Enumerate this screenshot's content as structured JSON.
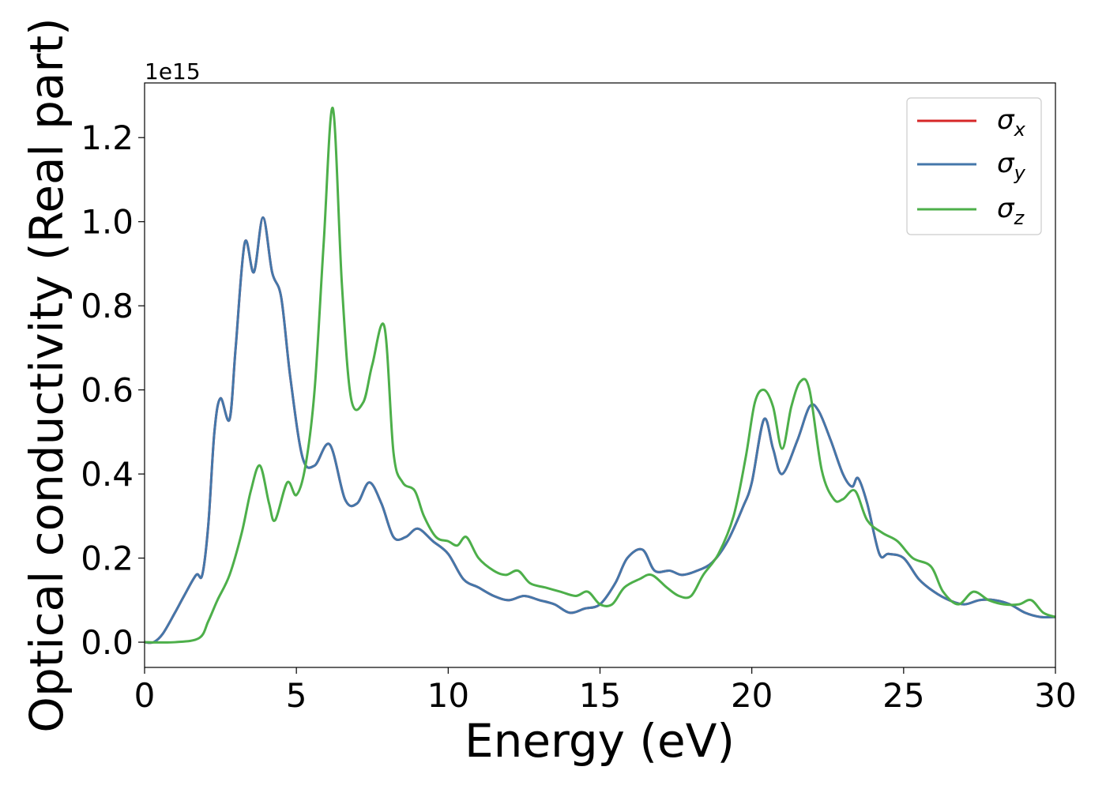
{
  "chart_data": {
    "type": "line",
    "xlabel": "Energy (eV)",
    "ylabel": "Optical conductivity (Real part)",
    "offset_text": "1e15",
    "xlim": [
      0,
      30
    ],
    "ylim": [
      -0.06,
      1.33
    ],
    "x_ticks": [
      0,
      5,
      10,
      15,
      20,
      25,
      30
    ],
    "x_tick_labels": [
      "0",
      "5",
      "10",
      "15",
      "20",
      "25",
      "30"
    ],
    "y_ticks": [
      0.0,
      0.2,
      0.4,
      0.6,
      0.8,
      1.0,
      1.2
    ],
    "y_tick_labels": [
      "0.0",
      "0.2",
      "0.4",
      "0.6",
      "0.8",
      "1.0",
      "1.2"
    ],
    "grid": false,
    "legend_position": "top-right",
    "series": [
      {
        "name": "σx",
        "legend_base": "σ",
        "legend_sub": "x",
        "color": "#d62728",
        "x": [
          0,
          0.3,
          0.6,
          1.0,
          1.3,
          1.7,
          1.9,
          2.1,
          2.3,
          2.5,
          2.8,
          3.0,
          3.3,
          3.6,
          3.9,
          4.2,
          4.5,
          4.8,
          5.2,
          5.6,
          6.1,
          6.6,
          7.0,
          7.4,
          7.8,
          8.2,
          8.6,
          9.0,
          9.5,
          10.0,
          10.5,
          11.0,
          11.5,
          12.0,
          12.5,
          13.0,
          13.5,
          14.0,
          14.5,
          15.0,
          15.5,
          15.9,
          16.4,
          16.8,
          17.3,
          17.7,
          18.2,
          18.7,
          19.2,
          19.7,
          20.0,
          20.4,
          20.7,
          21.0,
          21.5,
          21.9,
          22.2,
          22.6,
          23.0,
          23.3,
          23.5,
          23.8,
          24.2,
          24.5,
          25.0,
          25.5,
          26.0,
          26.5,
          27.0,
          27.5,
          28.0,
          28.5,
          29.0,
          29.5,
          30.0
        ],
        "values": [
          0.0,
          0.0,
          0.02,
          0.07,
          0.11,
          0.16,
          0.16,
          0.28,
          0.5,
          0.58,
          0.53,
          0.7,
          0.95,
          0.88,
          1.01,
          0.88,
          0.82,
          0.63,
          0.44,
          0.42,
          0.47,
          0.34,
          0.33,
          0.38,
          0.33,
          0.25,
          0.25,
          0.27,
          0.24,
          0.21,
          0.15,
          0.13,
          0.11,
          0.1,
          0.11,
          0.1,
          0.09,
          0.07,
          0.08,
          0.09,
          0.14,
          0.2,
          0.22,
          0.17,
          0.17,
          0.16,
          0.17,
          0.19,
          0.24,
          0.32,
          0.38,
          0.53,
          0.46,
          0.4,
          0.48,
          0.56,
          0.55,
          0.48,
          0.4,
          0.37,
          0.39,
          0.33,
          0.21,
          0.21,
          0.2,
          0.15,
          0.12,
          0.1,
          0.09,
          0.1,
          0.1,
          0.09,
          0.07,
          0.06,
          0.06
        ]
      },
      {
        "name": "σy",
        "legend_base": "σ",
        "legend_sub": "y",
        "color": "#4477aa",
        "x": [
          0,
          0.3,
          0.6,
          1.0,
          1.3,
          1.7,
          1.9,
          2.1,
          2.3,
          2.5,
          2.8,
          3.0,
          3.3,
          3.6,
          3.9,
          4.2,
          4.5,
          4.8,
          5.2,
          5.6,
          6.1,
          6.6,
          7.0,
          7.4,
          7.8,
          8.2,
          8.6,
          9.0,
          9.5,
          10.0,
          10.5,
          11.0,
          11.5,
          12.0,
          12.5,
          13.0,
          13.5,
          14.0,
          14.5,
          15.0,
          15.5,
          15.9,
          16.4,
          16.8,
          17.3,
          17.7,
          18.2,
          18.7,
          19.2,
          19.7,
          20.0,
          20.4,
          20.7,
          21.0,
          21.5,
          21.9,
          22.2,
          22.6,
          23.0,
          23.3,
          23.5,
          23.8,
          24.2,
          24.5,
          25.0,
          25.5,
          26.0,
          26.5,
          27.0,
          27.5,
          28.0,
          28.5,
          29.0,
          29.5,
          30.0
        ],
        "values": [
          0.0,
          0.0,
          0.02,
          0.07,
          0.11,
          0.16,
          0.16,
          0.28,
          0.5,
          0.58,
          0.53,
          0.7,
          0.95,
          0.88,
          1.01,
          0.88,
          0.82,
          0.63,
          0.44,
          0.42,
          0.47,
          0.34,
          0.33,
          0.38,
          0.33,
          0.25,
          0.25,
          0.27,
          0.24,
          0.21,
          0.15,
          0.13,
          0.11,
          0.1,
          0.11,
          0.1,
          0.09,
          0.07,
          0.08,
          0.09,
          0.14,
          0.2,
          0.22,
          0.17,
          0.17,
          0.16,
          0.17,
          0.19,
          0.24,
          0.32,
          0.38,
          0.53,
          0.46,
          0.4,
          0.48,
          0.56,
          0.55,
          0.48,
          0.4,
          0.37,
          0.39,
          0.33,
          0.21,
          0.21,
          0.2,
          0.15,
          0.12,
          0.1,
          0.09,
          0.1,
          0.1,
          0.09,
          0.07,
          0.06,
          0.06
        ]
      },
      {
        "name": "σz",
        "legend_base": "σ",
        "legend_sub": "z",
        "color": "#4daf4a",
        "x": [
          0,
          1.0,
          1.8,
          2.1,
          2.4,
          2.8,
          3.2,
          3.5,
          3.8,
          4.1,
          4.3,
          4.7,
          5.0,
          5.3,
          5.6,
          5.9,
          6.2,
          6.5,
          6.8,
          7.2,
          7.5,
          7.9,
          8.2,
          8.5,
          8.9,
          9.2,
          9.6,
          10.0,
          10.3,
          10.6,
          11.0,
          11.5,
          11.9,
          12.3,
          12.7,
          13.2,
          13.7,
          14.2,
          14.6,
          15.0,
          15.4,
          15.8,
          16.3,
          16.7,
          17.2,
          17.6,
          18.0,
          18.4,
          18.9,
          19.4,
          19.8,
          20.1,
          20.4,
          20.7,
          21.0,
          21.3,
          21.6,
          21.9,
          22.3,
          22.7,
          23.0,
          23.4,
          23.8,
          24.3,
          24.8,
          25.3,
          25.9,
          26.3,
          26.8,
          27.3,
          27.8,
          28.3,
          28.8,
          29.2,
          29.6,
          30.0
        ],
        "values": [
          0.0,
          0.0,
          0.01,
          0.05,
          0.1,
          0.16,
          0.26,
          0.36,
          0.42,
          0.33,
          0.29,
          0.38,
          0.35,
          0.42,
          0.6,
          0.95,
          1.27,
          0.85,
          0.58,
          0.57,
          0.66,
          0.75,
          0.45,
          0.38,
          0.36,
          0.3,
          0.25,
          0.24,
          0.23,
          0.25,
          0.2,
          0.17,
          0.16,
          0.17,
          0.14,
          0.13,
          0.12,
          0.11,
          0.12,
          0.09,
          0.09,
          0.13,
          0.15,
          0.16,
          0.13,
          0.11,
          0.11,
          0.16,
          0.21,
          0.3,
          0.44,
          0.57,
          0.6,
          0.56,
          0.46,
          0.56,
          0.62,
          0.6,
          0.41,
          0.34,
          0.34,
          0.36,
          0.29,
          0.26,
          0.24,
          0.2,
          0.18,
          0.12,
          0.09,
          0.12,
          0.1,
          0.09,
          0.09,
          0.1,
          0.07,
          0.06
        ]
      }
    ]
  }
}
